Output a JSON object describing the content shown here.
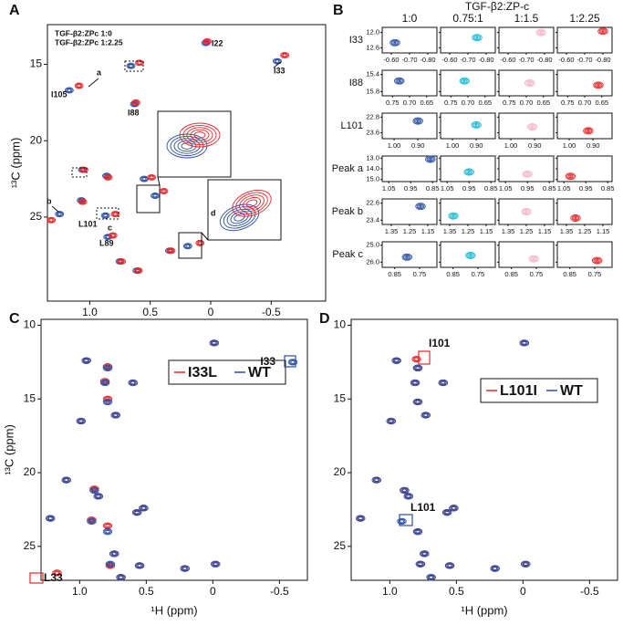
{
  "chart_data": [
    {
      "type": "peak-map",
      "panel": "A",
      "ylabel": "¹³C (ppm)",
      "xlim": [
        1.35,
        -0.95
      ],
      "ylim": [
        12.4,
        30.5
      ],
      "xticks": [
        {
          "value": 1,
          "label": "1.0"
        },
        0.5,
        0,
        -0.5
      ],
      "yticks": [
        15,
        20,
        25
      ],
      "series": [
        {
          "name": "TGF-β2:ZPc 1:0",
          "color": "#2b4ea2",
          "x": [
            0.04,
            -0.55,
            0.66,
            1.17,
            0.63,
            1.25,
            1.06,
            0.86,
            1.07,
            0.87,
            0.85,
            0.75,
            0.61,
            0.34,
            0.46,
            0.19,
            0.55
          ],
          "y": [
            13.6,
            14.8,
            15.1,
            16.7,
            17.6,
            24.8,
            21.9,
            22.3,
            23.9,
            24.9,
            26.3,
            27.9,
            28.5,
            27.2,
            23.6,
            26.9,
            22.5
          ]
        },
        {
          "name": "TGF-β2:ZPc 1:2.25",
          "color": "#e8262a",
          "x": [
            0.04,
            -0.6,
            0.6,
            1.1,
            0.63,
            1.33,
            1.06,
            0.86,
            1.07,
            0.8,
            0.82,
            0.75,
            0.61,
            0.34,
            0.4,
            0.1,
            0.5
          ],
          "y": [
            13.5,
            14.4,
            14.9,
            16.4,
            17.5,
            25.2,
            21.9,
            22.4,
            24.0,
            24.8,
            26.2,
            27.9,
            28.5,
            27.2,
            23.3,
            26.7,
            22.4
          ]
        }
      ],
      "annotations": [
        "I22",
        "I33",
        "a",
        "I105",
        "I88",
        "b",
        "L101",
        "c",
        "L89",
        "d"
      ]
    },
    {
      "type": "contour-grid",
      "panel": "B",
      "title": "TGF-β2:ZP-c",
      "series": [
        {
          "name": "1:0",
          "color": "#2b4ea2"
        },
        {
          "name": "0.75:1",
          "color": "#1bbcd4"
        },
        {
          "name": "1:1.5",
          "color": "#f4b6c8"
        },
        {
          "name": "1:2.25",
          "color": "#e8262a"
        }
      ],
      "rows": [
        {
          "label": "I33",
          "xlim": [
            -0.55,
            -0.85
          ],
          "ylim": [
            11.8,
            12.8
          ],
          "xticks": [
            {
              "value": -0.6,
              "label": "-0.60"
            },
            {
              "value": -0.7,
              "label": "-0.70"
            },
            {
              "value": -0.8,
              "label": "-0.80"
            }
          ],
          "yticks": [
            {
              "value": 12,
              "label": "12.0"
            },
            12.6
          ],
          "x": [
            -0.62,
            -0.75,
            -0.78,
            -0.8
          ],
          "y": [
            12.4,
            12.2,
            12.0,
            11.95
          ]
        },
        {
          "label": "I88",
          "xlim": [
            0.78,
            0.62
          ],
          "ylim": [
            15.3,
            15.9
          ],
          "xticks": [
            0.75,
            {
              "value": 0.7,
              "label": "0.70"
            },
            0.65
          ],
          "yticks": [
            15.4,
            15.8
          ],
          "x": [
            0.73,
            0.71,
            0.69,
            0.66
          ],
          "y": [
            15.55,
            15.55,
            15.6,
            15.65
          ]
        },
        {
          "label": "L101",
          "xlim": [
            1.05,
            0.82
          ],
          "ylim": [
            22.6,
            23.9
          ],
          "xticks": [
            {
              "value": 1,
              "label": "1.00"
            },
            {
              "value": 0.9,
              "label": "0.90"
            }
          ],
          "yticks": [
            22.8,
            23.6
          ],
          "x": [
            0.9,
            0.9,
            0.91,
            0.92
          ],
          "y": [
            23.0,
            23.2,
            23.3,
            23.5
          ]
        },
        {
          "label": "Peak a",
          "xlim": [
            1.08,
            0.83
          ],
          "ylim": [
            12.8,
            15.2
          ],
          "xticks": [
            1.05,
            0.95,
            0.85
          ],
          "yticks": [
            {
              "value": 13,
              "label": "13.0"
            },
            {
              "value": 14,
              "label": "14.0"
            },
            {
              "value": 15,
              "label": "15.0"
            }
          ],
          "x": [
            0.86,
            0.95,
            0.95,
            1.02
          ],
          "y": [
            13.1,
            14.3,
            14.5,
            14.7
          ]
        },
        {
          "label": "Peak b",
          "xlim": [
            1.4,
            1.1
          ],
          "ylim": [
            22.4,
            23.6
          ],
          "xticks": [
            1.35,
            1.25,
            1.15
          ],
          "yticks": [
            22.6,
            23.4
          ],
          "x": [
            1.19,
            1.33,
            1.25,
            1.3
          ],
          "y": [
            22.75,
            23.2,
            23.0,
            23.3
          ]
        },
        {
          "label": "Peak c",
          "xlim": [
            0.9,
            0.68
          ],
          "ylim": [
            24.8,
            26.3
          ],
          "xticks": [
            0.85,
            0.75
          ],
          "yticks": [
            {
              "value": 25,
              "label": "25.0"
            },
            {
              "value": 26,
              "label": "26.0"
            }
          ],
          "x": [
            0.8,
            0.78,
            0.76,
            0.74
          ],
          "y": [
            25.7,
            25.6,
            25.8,
            25.9
          ]
        }
      ]
    },
    {
      "type": "peak-map",
      "panel": "C",
      "xlabel": "¹H  (ppm)",
      "ylabel": "¹³C (ppm)",
      "xlim": [
        1.29,
        -0.71
      ],
      "ylim": [
        9.6,
        27.3
      ],
      "xticks": [
        {
          "value": 1,
          "label": "1.0"
        },
        0.5,
        0,
        -0.5
      ],
      "yticks": [
        10,
        15,
        20,
        25
      ],
      "series": [
        {
          "name": "I33L",
          "color": "#e8262a",
          "x": [
            -0.01,
            0.95,
            0.79,
            0.81,
            0.6,
            0.79,
            0.73,
            0.99,
            1.1,
            0.89,
            0.86,
            0.52,
            0.57,
            1.22,
            0.91,
            0.79,
            0.74,
            -0.02,
            0.21,
            0.55,
            0.69,
            0.77,
            1.17
          ],
          "y": [
            11.2,
            12.4,
            12.8,
            13.8,
            13.9,
            15.0,
            16.1,
            16.5,
            20.5,
            21.1,
            21.6,
            22.4,
            22.7,
            23.1,
            23.2,
            23.6,
            25.5,
            26.2,
            26.5,
            26.3,
            27.1,
            26.3,
            26.8
          ]
        },
        {
          "name": "WT",
          "color": "#2b4ea2",
          "x": [
            -0.01,
            -0.6,
            0.95,
            0.79,
            0.81,
            0.6,
            0.79,
            0.73,
            0.99,
            1.1,
            0.89,
            0.86,
            0.52,
            0.57,
            1.22,
            0.91,
            0.79,
            0.74,
            -0.02,
            0.21,
            0.55,
            0.69,
            0.77
          ],
          "y": [
            11.2,
            12.5,
            12.4,
            12.9,
            13.9,
            13.9,
            15.2,
            16.1,
            16.5,
            20.5,
            21.2,
            21.6,
            22.4,
            22.7,
            23.1,
            23.3,
            24.0,
            25.5,
            26.2,
            26.5,
            26.3,
            27.1,
            26.2
          ]
        }
      ],
      "annotations": [
        {
          "text": "I33",
          "color": "#2b4ea2"
        },
        {
          "text": "L33",
          "color": "#e8262a"
        }
      ]
    },
    {
      "type": "peak-map",
      "panel": "D",
      "xlabel": "¹H  (ppm)",
      "xlim": [
        1.29,
        -0.71
      ],
      "ylim": [
        9.6,
        27.3
      ],
      "xticks": [
        {
          "value": 1,
          "label": "1.0"
        },
        0.5,
        0,
        -0.5
      ],
      "yticks": [
        10,
        15,
        20,
        25
      ],
      "series": [
        {
          "name": "L101I",
          "color": "#e8262a",
          "x": [
            -0.01,
            0.95,
            0.79,
            0.81,
            0.6,
            0.79,
            0.73,
            0.99,
            1.1,
            0.89,
            0.86,
            0.52,
            0.57,
            1.22,
            0.79,
            0.74,
            -0.02,
            0.21,
            0.55,
            0.69,
            0.77,
            0.8
          ],
          "y": [
            11.2,
            12.4,
            12.9,
            13.9,
            13.9,
            15.2,
            16.1,
            16.5,
            20.5,
            21.2,
            21.6,
            22.4,
            22.7,
            23.1,
            24.0,
            25.5,
            26.2,
            26.5,
            26.3,
            27.1,
            26.2,
            12.3
          ]
        },
        {
          "name": "WT",
          "color": "#2b4ea2",
          "x": [
            -0.01,
            0.95,
            0.79,
            0.81,
            0.6,
            0.79,
            0.73,
            0.99,
            1.1,
            0.89,
            0.86,
            0.52,
            0.57,
            1.22,
            0.91,
            0.79,
            0.74,
            -0.02,
            0.21,
            0.55,
            0.69,
            0.77
          ],
          "y": [
            11.2,
            12.4,
            12.9,
            13.9,
            13.9,
            15.2,
            16.1,
            16.5,
            20.5,
            21.2,
            21.6,
            22.4,
            22.7,
            23.1,
            23.3,
            24.0,
            25.5,
            26.2,
            26.5,
            26.3,
            27.1,
            26.2
          ]
        }
      ],
      "annotations": [
        {
          "text": "I101",
          "color": "#e8262a"
        },
        {
          "text": "L101",
          "color": "#2b4ea2"
        }
      ]
    }
  ]
}
